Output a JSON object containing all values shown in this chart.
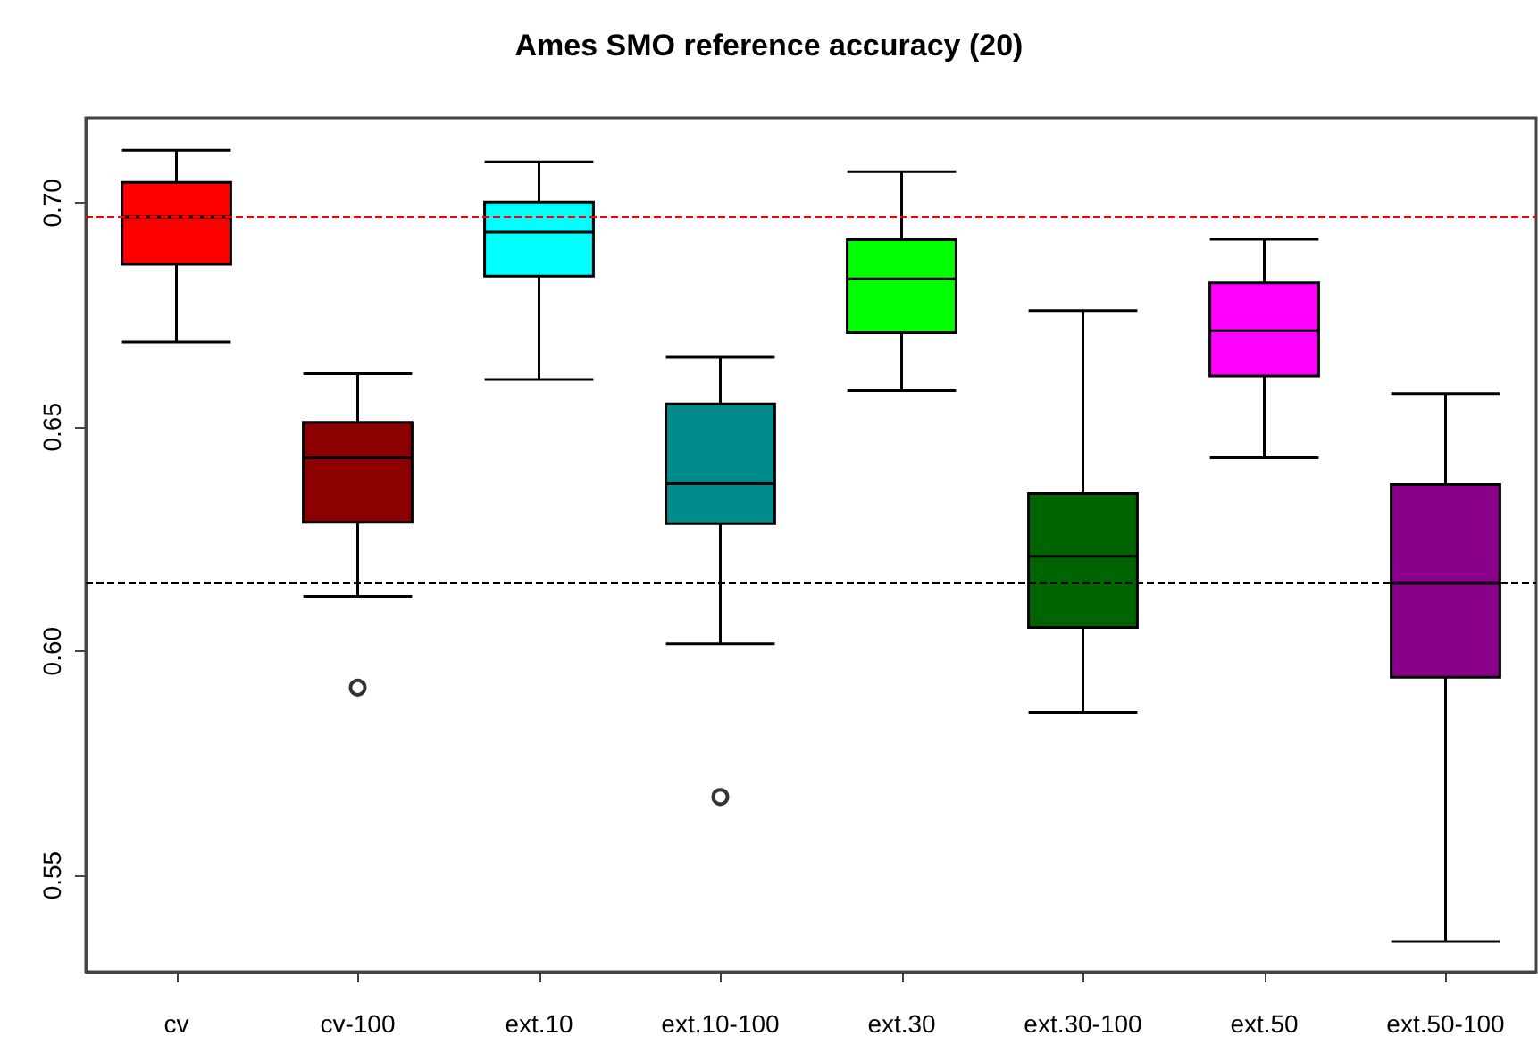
{
  "chart_data": {
    "type": "box",
    "title": "Ames SMO reference accuracy (20)",
    "categories": [
      "cv",
      "cv-100",
      "ext.10",
      "ext.10-100",
      "ext.30",
      "ext.30-100",
      "ext.50",
      "ext.50-100"
    ],
    "boxes": [
      {
        "low": 0.669,
        "q1": 0.6863,
        "median": 0.6969,
        "q3": 0.7046,
        "high": 0.7118
      },
      {
        "low": 0.6123,
        "q1": 0.6288,
        "median": 0.6432,
        "q3": 0.6511,
        "high": 0.6619,
        "outliers": [
          0.5919
        ]
      },
      {
        "low": 0.6606,
        "q1": 0.6837,
        "median": 0.6935,
        "q3": 0.7002,
        "high": 0.7092
      },
      {
        "low": 0.6017,
        "q1": 0.6285,
        "median": 0.6374,
        "q3": 0.6552,
        "high": 0.6656,
        "outliers": [
          0.5675
        ]
      },
      {
        "low": 0.6581,
        "q1": 0.6711,
        "median": 0.6831,
        "q3": 0.6918,
        "high": 0.707
      },
      {
        "low": 0.5864,
        "q1": 0.6053,
        "median": 0.6212,
        "q3": 0.6352,
        "high": 0.676
      },
      {
        "low": 0.6432,
        "q1": 0.6614,
        "median": 0.6715,
        "q3": 0.6822,
        "high": 0.6919
      },
      {
        "low": 0.5353,
        "q1": 0.5942,
        "median": 0.6152,
        "q3": 0.6372,
        "high": 0.6575
      }
    ],
    "colors": [
      "#ff0000",
      "#8b0000",
      "#00ffff",
      "#008b8b",
      "#00ff00",
      "#006400",
      "#ff00ff",
      "#8b008b"
    ],
    "ylim": [
      0.5285,
      0.719
    ],
    "yticks": [
      0.55,
      {
        "value": 0.6,
        "label": "0.60"
      },
      0.65,
      {
        "value": 0.7,
        "label": "0.70"
      }
    ],
    "ref_lines": [
      {
        "axis": "y",
        "value": 0.697,
        "color": "#ff0000",
        "line_style": "dashed"
      },
      {
        "axis": "y",
        "value": 0.6154,
        "color": "#000000",
        "line_style": "dashed"
      }
    ],
    "grid": false
  }
}
